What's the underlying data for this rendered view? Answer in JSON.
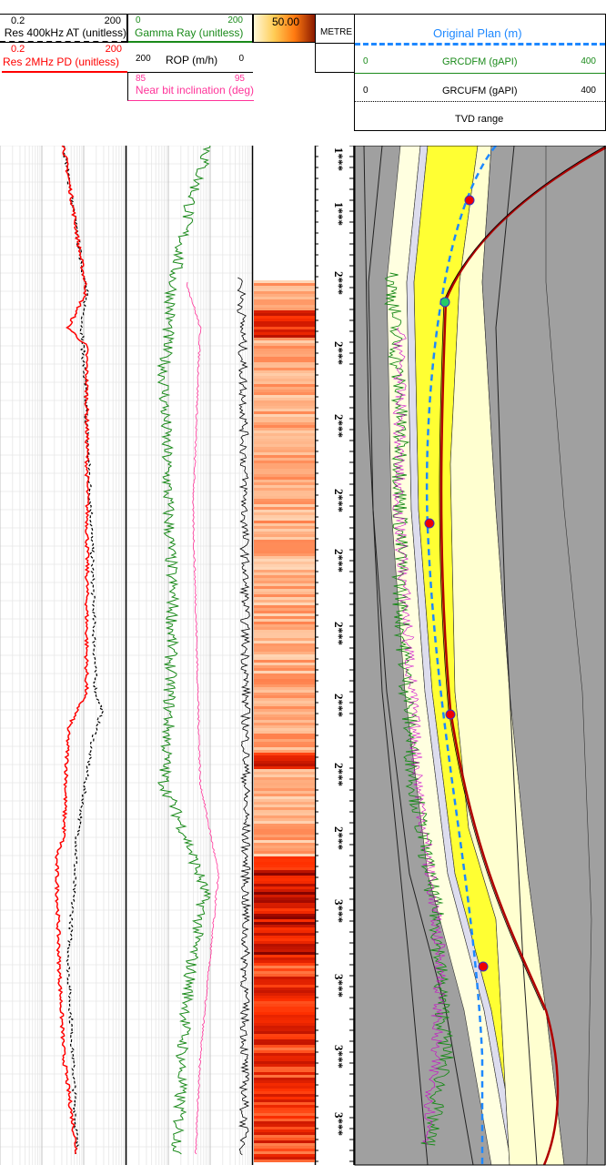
{
  "header": {
    "res_at": {
      "min": "0.2",
      "max": "200",
      "label": "Res 400kHz AT (unitless)"
    },
    "res_pd": {
      "min": "0.2",
      "max": "200",
      "label": "Res 2MHz PD (unitless)"
    },
    "gamma": {
      "min": "0",
      "max": "200",
      "label": "Gamma Ray (unitless)"
    },
    "rop": {
      "min": "200",
      "max": "0",
      "label": "ROP (m/h)"
    },
    "incl": {
      "min": "85",
      "max": "95",
      "label": "Near bit inclination (deg)"
    },
    "image_scale": "50.00",
    "depth_unit": "METRE",
    "plan": {
      "label": "Original Plan (m)"
    },
    "grcdfm": {
      "min": "0",
      "max": "400",
      "label": "GRCDFM (gAPI)"
    },
    "grcufm": {
      "min": "0",
      "max": "400",
      "label": "GRCUFM (gAPI)"
    },
    "tvd": {
      "label": "TVD range"
    }
  },
  "depth_labels": [
    "1***",
    "1***",
    "2***",
    "2***",
    "2***",
    "2***",
    "2***",
    "2***",
    "2***",
    "2***",
    "2***",
    "3***",
    "3***",
    "3***",
    "3***"
  ],
  "colors": {
    "res_at": "#000000",
    "res_pd": "#ff0000",
    "gamma": "#1a8a1a",
    "incl": "#ff3399",
    "plan": "#1e88ff",
    "well": "#b00000",
    "target": "#ffff33",
    "model_bg": "#a0a0a0"
  }
}
